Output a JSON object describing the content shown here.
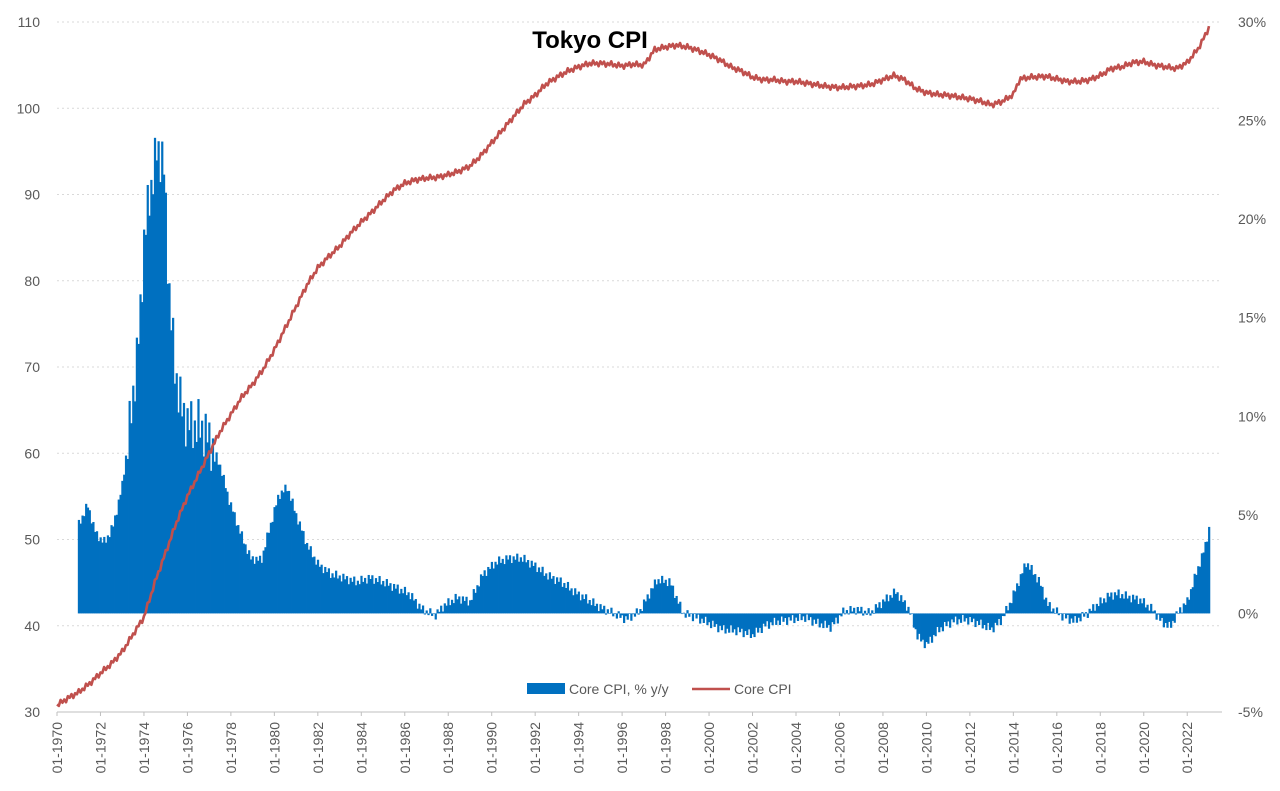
{
  "chart_data": {
    "type": "bar+line",
    "title": "Tokyo CPI",
    "grid": "horizontal dotted",
    "legend_position": "bottom-center",
    "colors": {
      "bars": "#0070C0",
      "line": "#C0504D",
      "grid": "#d9d9d9",
      "text": "#595959"
    },
    "y_left": {
      "min": 30,
      "max": 110,
      "ticks": [
        "30",
        "40",
        "50",
        "60",
        "70",
        "80",
        "90",
        "100",
        "110"
      ]
    },
    "y_right": {
      "min": -5,
      "max": 30,
      "ticks": [
        "-5%",
        "0%",
        "5%",
        "10%",
        "15%",
        "20%",
        "25%",
        "30%"
      ]
    },
    "x_ticks": [
      "01-1970",
      "01-1972",
      "01-1974",
      "01-1976",
      "01-1978",
      "01-1980",
      "01-1982",
      "01-1984",
      "01-1986",
      "01-1988",
      "01-1990",
      "01-1992",
      "01-1994",
      "01-1996",
      "01-1998",
      "01-2000",
      "01-2002",
      "01-2004",
      "01-2006",
      "01-2008",
      "01-2010",
      "01-2012",
      "01-2014",
      "01-2016",
      "01-2018",
      "01-2020",
      "01-2022"
    ],
    "series": [
      {
        "name": "Core CPI, % y/y",
        "type": "bar",
        "axis": "right",
        "points": [
          [
            1971.0,
            4.5
          ],
          [
            1971.4,
            5.5
          ],
          [
            1971.8,
            4.0
          ],
          [
            1972.2,
            3.6
          ],
          [
            1972.6,
            4.5
          ],
          [
            1973.0,
            6.5
          ],
          [
            1973.4,
            10.0
          ],
          [
            1973.8,
            14.5
          ],
          [
            1974.0,
            19.0
          ],
          [
            1974.3,
            21.5
          ],
          [
            1974.6,
            23.5
          ],
          [
            1974.9,
            23.0
          ],
          [
            1975.1,
            17.5
          ],
          [
            1975.4,
            12.5
          ],
          [
            1975.8,
            10.0
          ],
          [
            1976.2,
            9.5
          ],
          [
            1976.6,
            9.5
          ],
          [
            1977.0,
            8.8
          ],
          [
            1977.5,
            7.5
          ],
          [
            1977.9,
            5.8
          ],
          [
            1978.4,
            4.2
          ],
          [
            1978.9,
            2.8
          ],
          [
            1979.4,
            2.7
          ],
          [
            1979.7,
            4.0
          ],
          [
            1980.2,
            6.0
          ],
          [
            1980.6,
            6.4
          ],
          [
            1981.0,
            5.0
          ],
          [
            1981.5,
            3.5
          ],
          [
            1982.0,
            2.5
          ],
          [
            1982.6,
            2.0
          ],
          [
            1983.2,
            1.8
          ],
          [
            1983.8,
            1.6
          ],
          [
            1984.4,
            1.8
          ],
          [
            1985.0,
            1.6
          ],
          [
            1985.6,
            1.3
          ],
          [
            1986.2,
            1.0
          ],
          [
            1986.8,
            0.2
          ],
          [
            1987.4,
            -0.1
          ],
          [
            1987.8,
            0.4
          ],
          [
            1988.4,
            0.8
          ],
          [
            1989.0,
            0.6
          ],
          [
            1989.6,
            2.0
          ],
          [
            1990.2,
            2.6
          ],
          [
            1990.8,
            2.8
          ],
          [
            1991.4,
            2.8
          ],
          [
            1992.0,
            2.4
          ],
          [
            1992.6,
            1.9
          ],
          [
            1993.2,
            1.6
          ],
          [
            1993.8,
            1.1
          ],
          [
            1994.4,
            0.7
          ],
          [
            1995.0,
            0.3
          ],
          [
            1995.6,
            0.0
          ],
          [
            1996.2,
            -0.3
          ],
          [
            1996.8,
            0.1
          ],
          [
            1997.6,
            1.7
          ],
          [
            1998.2,
            1.6
          ],
          [
            1998.8,
            0.0
          ],
          [
            1999.4,
            -0.2
          ],
          [
            2000.0,
            -0.5
          ],
          [
            2000.6,
            -0.8
          ],
          [
            2001.4,
            -0.9
          ],
          [
            2002.0,
            -1.1
          ],
          [
            2002.6,
            -0.6
          ],
          [
            2003.2,
            -0.4
          ],
          [
            2003.8,
            -0.3
          ],
          [
            2004.4,
            -0.2
          ],
          [
            2005.0,
            -0.5
          ],
          [
            2005.6,
            -0.7
          ],
          [
            2006.2,
            0.1
          ],
          [
            2006.8,
            0.2
          ],
          [
            2007.4,
            0.0
          ],
          [
            2008.0,
            0.6
          ],
          [
            2008.6,
            1.1
          ],
          [
            2009.2,
            0.2
          ],
          [
            2009.6,
            -1.2
          ],
          [
            2010.0,
            -1.6
          ],
          [
            2010.6,
            -0.8
          ],
          [
            2011.2,
            -0.4
          ],
          [
            2011.8,
            -0.3
          ],
          [
            2012.4,
            -0.5
          ],
          [
            2013.0,
            -0.8
          ],
          [
            2013.4,
            -0.4
          ],
          [
            2013.8,
            0.4
          ],
          [
            2014.2,
            1.5
          ],
          [
            2014.6,
            2.6
          ],
          [
            2015.2,
            1.6
          ],
          [
            2015.6,
            0.4
          ],
          [
            2016.2,
            -0.1
          ],
          [
            2016.8,
            -0.4
          ],
          [
            2017.4,
            0.0
          ],
          [
            2017.8,
            0.4
          ],
          [
            2018.4,
            0.9
          ],
          [
            2018.8,
            1.0
          ],
          [
            2019.4,
            0.8
          ],
          [
            2019.8,
            0.7
          ],
          [
            2020.4,
            0.2
          ],
          [
            2020.8,
            -0.4
          ],
          [
            2021.2,
            -0.7
          ],
          [
            2021.6,
            0.1
          ],
          [
            2022.0,
            0.6
          ],
          [
            2022.4,
            2.0
          ],
          [
            2022.8,
            3.3
          ],
          [
            2023.0,
            4.3
          ]
        ]
      },
      {
        "name": "Core CPI",
        "type": "line",
        "axis": "left",
        "points": [
          [
            1970.0,
            30.8
          ],
          [
            1970.5,
            31.6
          ],
          [
            1971.0,
            32.3
          ],
          [
            1971.5,
            33.3
          ],
          [
            1972.0,
            34.5
          ],
          [
            1972.5,
            35.6
          ],
          [
            1973.0,
            37.0
          ],
          [
            1973.5,
            39.0
          ],
          [
            1974.0,
            41.0
          ],
          [
            1974.5,
            45.0
          ],
          [
            1975.0,
            48.5
          ],
          [
            1975.5,
            52.0
          ],
          [
            1976.0,
            55.0
          ],
          [
            1976.5,
            57.5
          ],
          [
            1977.0,
            60.0
          ],
          [
            1977.5,
            62.5
          ],
          [
            1978.0,
            64.5
          ],
          [
            1978.5,
            66.5
          ],
          [
            1979.0,
            68.0
          ],
          [
            1979.5,
            69.8
          ],
          [
            1980.0,
            72.0
          ],
          [
            1980.5,
            74.5
          ],
          [
            1981.0,
            77.0
          ],
          [
            1981.5,
            79.5
          ],
          [
            1982.0,
            81.5
          ],
          [
            1982.5,
            82.8
          ],
          [
            1983.0,
            84.0
          ],
          [
            1983.5,
            85.5
          ],
          [
            1984.0,
            86.8
          ],
          [
            1984.5,
            88.0
          ],
          [
            1985.0,
            89.3
          ],
          [
            1985.5,
            90.5
          ],
          [
            1986.0,
            91.3
          ],
          [
            1986.5,
            91.7
          ],
          [
            1987.0,
            91.9
          ],
          [
            1987.5,
            92.0
          ],
          [
            1988.0,
            92.3
          ],
          [
            1988.5,
            92.7
          ],
          [
            1989.0,
            93.3
          ],
          [
            1989.5,
            94.5
          ],
          [
            1990.0,
            96.0
          ],
          [
            1990.5,
            97.5
          ],
          [
            1991.0,
            99.0
          ],
          [
            1991.5,
            100.5
          ],
          [
            1992.0,
            101.5
          ],
          [
            1992.5,
            102.8
          ],
          [
            1993.0,
            103.6
          ],
          [
            1993.5,
            104.3
          ],
          [
            1994.0,
            104.8
          ],
          [
            1994.5,
            105.2
          ],
          [
            1995.0,
            105.2
          ],
          [
            1995.5,
            105.1
          ],
          [
            1996.0,
            104.9
          ],
          [
            1996.5,
            105.1
          ],
          [
            1997.0,
            105.0
          ],
          [
            1997.5,
            106.8
          ],
          [
            1998.0,
            107.1
          ],
          [
            1998.5,
            107.3
          ],
          [
            1999.0,
            107.1
          ],
          [
            1999.5,
            106.7
          ],
          [
            2000.0,
            106.2
          ],
          [
            2000.5,
            105.6
          ],
          [
            2001.0,
            104.8
          ],
          [
            2001.5,
            104.3
          ],
          [
            2002.0,
            103.6
          ],
          [
            2002.5,
            103.3
          ],
          [
            2003.0,
            103.3
          ],
          [
            2003.5,
            103.1
          ],
          [
            2004.0,
            103.1
          ],
          [
            2004.5,
            102.9
          ],
          [
            2005.0,
            102.7
          ],
          [
            2005.5,
            102.5
          ],
          [
            2006.0,
            102.4
          ],
          [
            2006.5,
            102.5
          ],
          [
            2007.0,
            102.6
          ],
          [
            2007.5,
            102.8
          ],
          [
            2008.0,
            103.3
          ],
          [
            2008.5,
            103.8
          ],
          [
            2009.0,
            103.3
          ],
          [
            2009.5,
            102.3
          ],
          [
            2010.0,
            101.8
          ],
          [
            2010.5,
            101.6
          ],
          [
            2011.0,
            101.5
          ],
          [
            2011.5,
            101.3
          ],
          [
            2012.0,
            101.1
          ],
          [
            2012.5,
            100.8
          ],
          [
            2013.0,
            100.4
          ],
          [
            2013.5,
            100.8
          ],
          [
            2014.0,
            101.6
          ],
          [
            2014.3,
            103.4
          ],
          [
            2014.8,
            103.6
          ],
          [
            2015.5,
            103.7
          ],
          [
            2016.0,
            103.4
          ],
          [
            2016.5,
            103.1
          ],
          [
            2017.0,
            103.1
          ],
          [
            2017.5,
            103.3
          ],
          [
            2018.0,
            103.8
          ],
          [
            2018.5,
            104.6
          ],
          [
            2019.0,
            104.8
          ],
          [
            2019.5,
            105.3
          ],
          [
            2020.0,
            105.4
          ],
          [
            2020.5,
            105.0
          ],
          [
            2021.0,
            104.8
          ],
          [
            2021.5,
            104.6
          ],
          [
            2022.0,
            105.3
          ],
          [
            2022.5,
            106.9
          ],
          [
            2022.8,
            108.3
          ],
          [
            2023.0,
            109.4
          ]
        ]
      }
    ]
  }
}
